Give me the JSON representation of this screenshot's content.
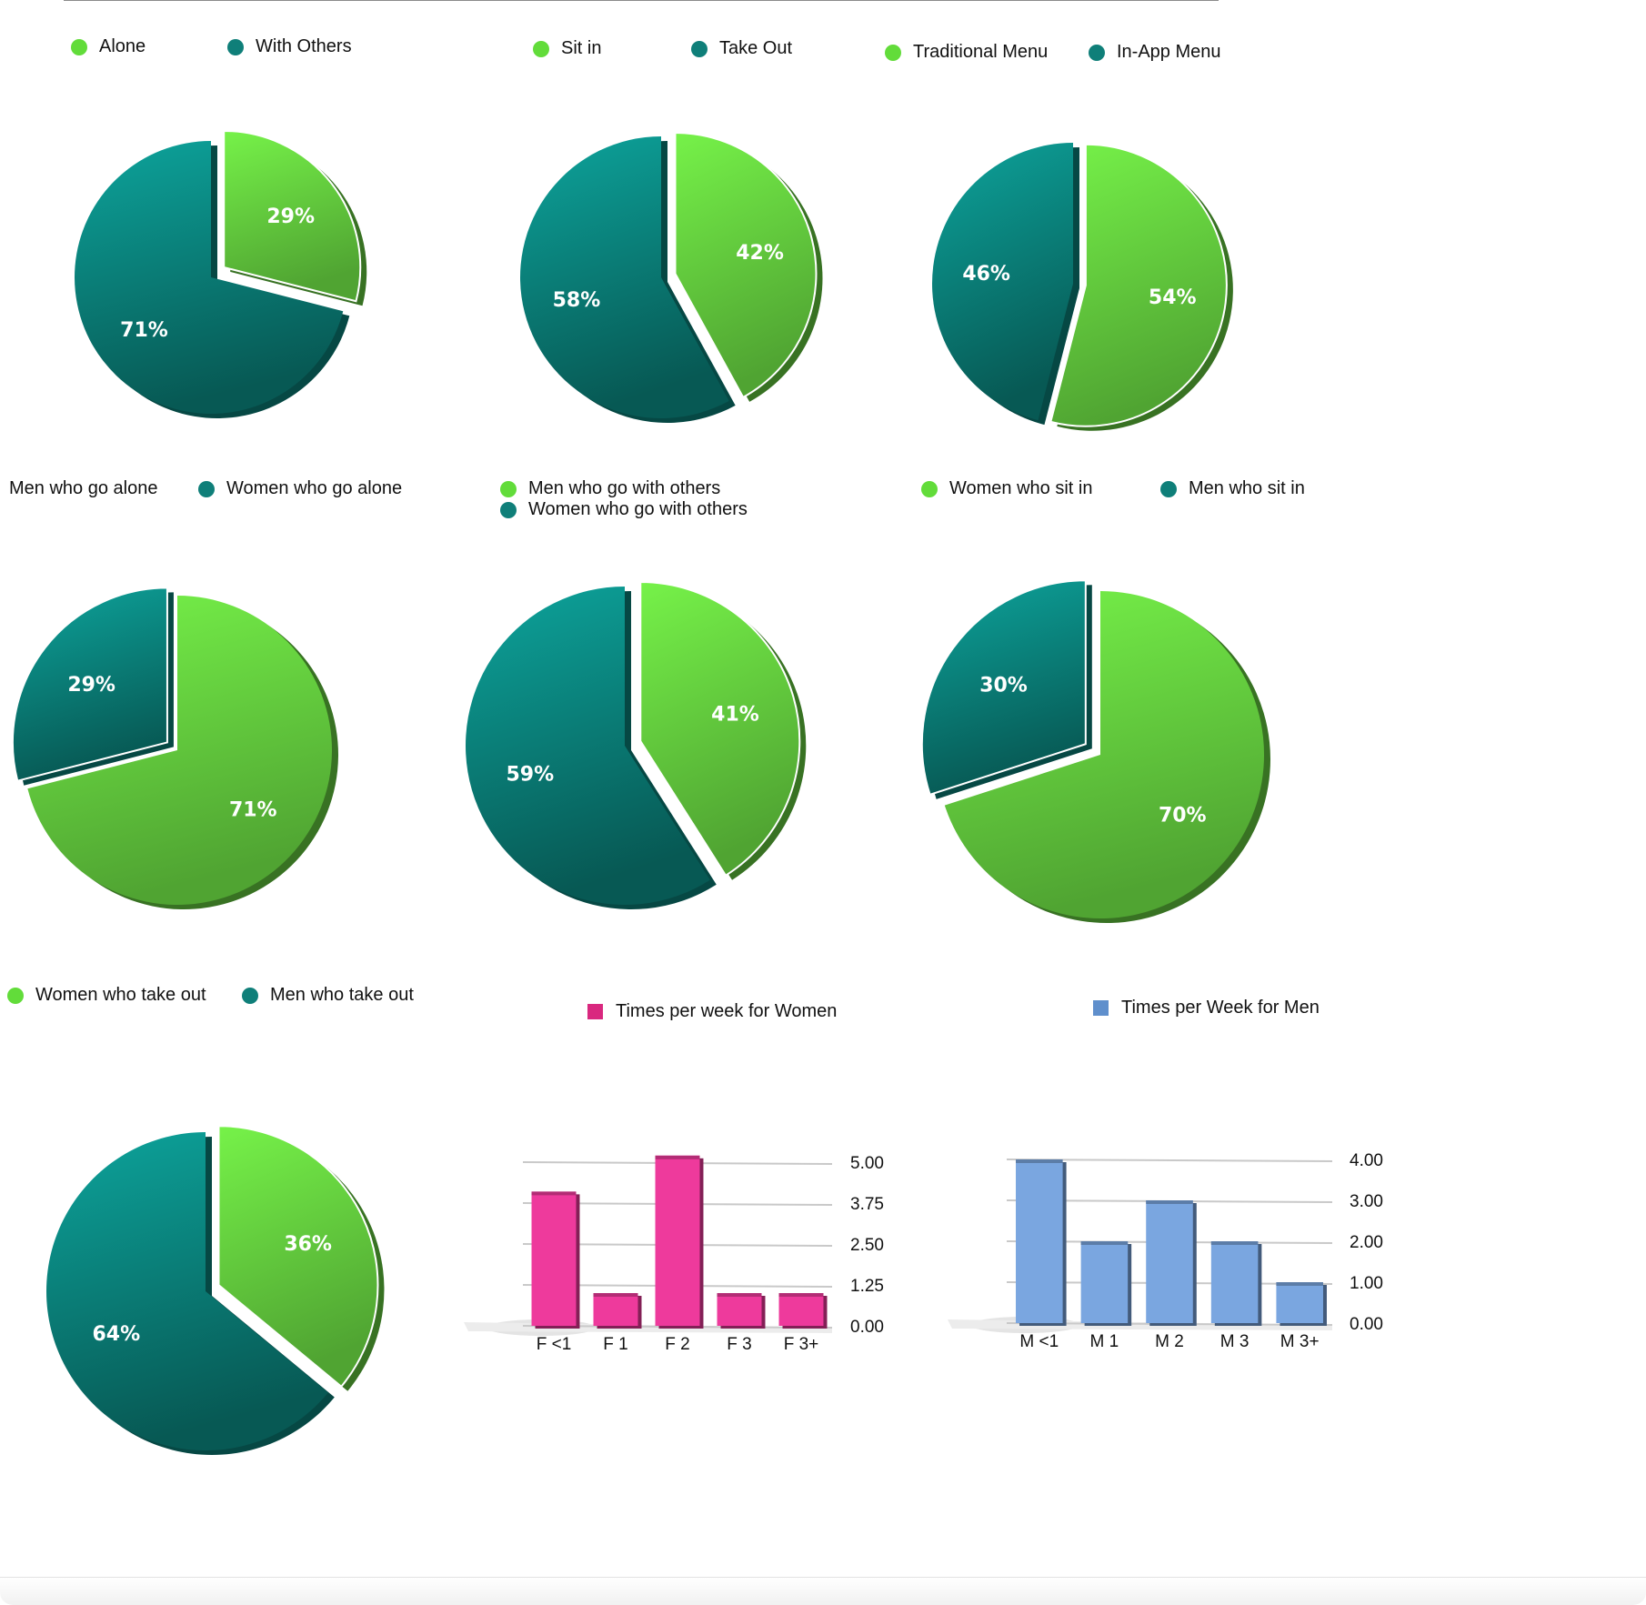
{
  "colors": {
    "green": "#6fe445",
    "teal": "#0b8f88",
    "pink": "#ee3a9c",
    "blue": "#7aa6e0",
    "legend_green": "#62dc3a",
    "legend_teal": "#0f7f79",
    "legend_pink": "#d9287f",
    "legend_blue": "#5f8fcc"
  },
  "chart_data": [
    {
      "type": "pie",
      "legend": [
        "Alone",
        "With Others"
      ],
      "slices": [
        {
          "label": "Alone",
          "value": 29,
          "text": "29%",
          "color": "green",
          "exploded": true
        },
        {
          "label": "With Others",
          "value": 71,
          "text": "71%",
          "color": "teal",
          "exploded": false
        }
      ]
    },
    {
      "type": "pie",
      "legend": [
        "Sit in",
        "Take Out"
      ],
      "slices": [
        {
          "label": "Sit in",
          "value": 42,
          "text": "42%",
          "color": "green",
          "exploded": true
        },
        {
          "label": "Take Out",
          "value": 58,
          "text": "58%",
          "color": "teal",
          "exploded": false
        }
      ]
    },
    {
      "type": "pie",
      "legend": [
        "Traditional Menu",
        "In-App Menu"
      ],
      "slices": [
        {
          "label": "Traditional Menu",
          "value": 54,
          "text": "54%",
          "color": "green",
          "exploded": true
        },
        {
          "label": "In-App Menu",
          "value": 46,
          "text": "46%",
          "color": "teal",
          "exploded": false
        }
      ]
    },
    {
      "type": "pie",
      "legend": [
        "Men who go alone",
        "Women who go alone"
      ],
      "slices": [
        {
          "label": "Men who go alone",
          "value": 71,
          "text": "71%",
          "color": "green",
          "exploded": false
        },
        {
          "label": "Women who go alone",
          "value": 29,
          "text": "29%",
          "color": "teal",
          "exploded": true
        }
      ]
    },
    {
      "type": "pie",
      "legend": [
        "Men who go with others",
        "Women who go with others"
      ],
      "slices": [
        {
          "label": "Men who go with others",
          "value": 41,
          "text": "41%",
          "color": "green",
          "exploded": true
        },
        {
          "label": "Women who go with others",
          "value": 59,
          "text": "59%",
          "color": "teal",
          "exploded": false
        }
      ]
    },
    {
      "type": "pie",
      "legend": [
        "Women who sit in",
        "Men who sit in"
      ],
      "slices": [
        {
          "label": "Women who sit in",
          "value": 70,
          "text": "70%",
          "color": "green",
          "exploded": false
        },
        {
          "label": "Men who sit in",
          "value": 30,
          "text": "30%",
          "color": "teal",
          "exploded": true
        }
      ]
    },
    {
      "type": "pie",
      "legend": [
        "Women who take out",
        "Men who take out"
      ],
      "slices": [
        {
          "label": "Women who take out",
          "value": 36,
          "text": "36%",
          "color": "green",
          "exploded": true
        },
        {
          "label": "Men who take out",
          "value": 64,
          "text": "64%",
          "color": "teal",
          "exploded": false
        }
      ]
    },
    {
      "type": "bar",
      "series_name": "Times per week for Women",
      "categories": [
        "F <1",
        "F 1",
        "F 2",
        "F 3",
        "F 3+"
      ],
      "values": [
        4.1,
        1.0,
        5.2,
        1.0,
        1.0
      ],
      "ylim": [
        0,
        5
      ],
      "ticks": [
        "0.00",
        "1.25",
        "2.50",
        "3.75",
        "5.00"
      ],
      "grid": true,
      "color": "pink"
    },
    {
      "type": "bar",
      "series_name": "Times per Week for Men",
      "categories": [
        "M <1",
        "M 1",
        "M 2",
        "M 3",
        "M 3+"
      ],
      "values": [
        4.0,
        2.0,
        3.0,
        2.0,
        1.0
      ],
      "ylim": [
        0,
        4
      ],
      "ticks": [
        "0.00",
        "1.00",
        "2.00",
        "3.00",
        "4.00"
      ],
      "grid": true,
      "color": "blue"
    }
  ]
}
